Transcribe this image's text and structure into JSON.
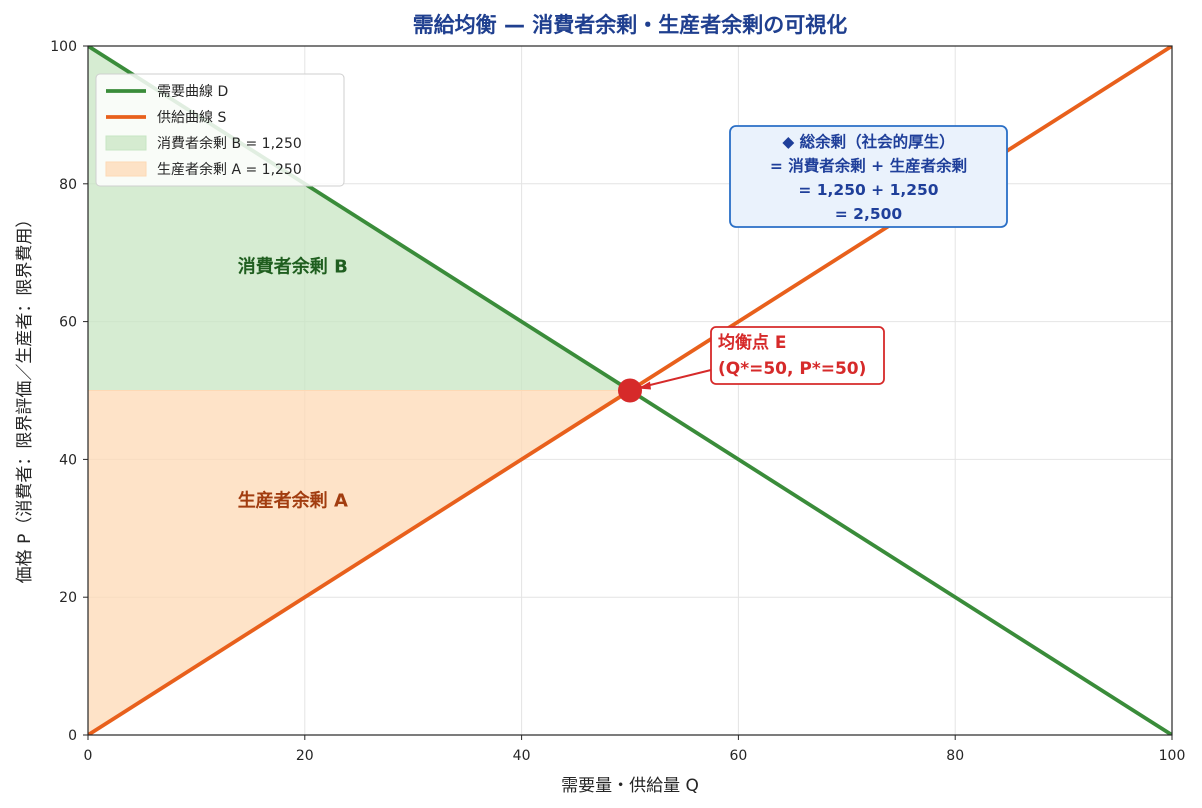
{
  "chart_data": {
    "type": "line",
    "title": "需給均衡 — 消費者余剰・生産者余剰の可視化",
    "xlabel": "需要量・供給量 Q",
    "ylabel": "価格 P（消費者：限界評価／生産者：限界費用）",
    "xlim": [
      0,
      100
    ],
    "ylim": [
      0,
      100
    ],
    "x_ticks": [
      "0",
      "20",
      "40",
      "60",
      "80",
      "100"
    ],
    "y_ticks": [
      "0",
      "20",
      "40",
      "60",
      "80",
      "100"
    ],
    "grid": true,
    "legend_position": "upper-left",
    "series": [
      {
        "name": "需要曲線 D",
        "color": "#3a8c3a",
        "points": [
          [
            0,
            100
          ],
          [
            100,
            0
          ]
        ]
      },
      {
        "name": "供給曲線 S",
        "color": "#e8601c",
        "points": [
          [
            0,
            0
          ],
          [
            100,
            100
          ]
        ]
      }
    ],
    "areas": [
      {
        "name": "消費者余剰 B = 1,250",
        "label": "消費者余剰 B",
        "color": "#c8e6c3",
        "label_color": "#1f5e1f",
        "polygon": [
          [
            0,
            100
          ],
          [
            50,
            50
          ],
          [
            0,
            50
          ]
        ],
        "label_at": [
          20,
          68
        ]
      },
      {
        "name": "生産者余剰 A = 1,250",
        "label": "生産者余剰 A",
        "color": "#fdd9b5",
        "label_color": "#a23d10",
        "polygon": [
          [
            0,
            50
          ],
          [
            50,
            50
          ],
          [
            0,
            0
          ]
        ],
        "label_at": [
          20,
          34
        ]
      }
    ],
    "equilibrium": {
      "q": 50,
      "p": 50,
      "color": "#d62a2a",
      "label_lines": [
        "均衡点 E",
        "(Q*=50, P*=50)"
      ]
    },
    "total_surplus": {
      "lines": [
        "◆ 総余剰（社会的厚生）",
        "= 消費者余剰 + 生産者余剰",
        "= 1,250 + 1,250",
        "= 2,500"
      ],
      "color": "#1f3f9a"
    }
  }
}
